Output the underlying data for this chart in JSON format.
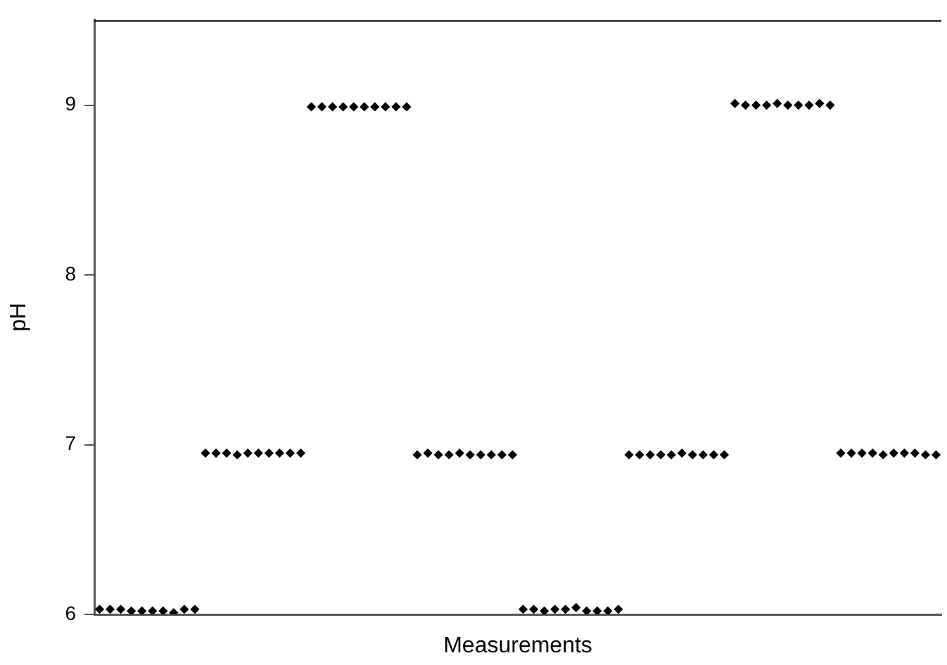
{
  "chart_data": {
    "type": "scatter",
    "xlabel": "Measurements",
    "ylabel": "pH",
    "categories": [
      null,
      null,
      null,
      null,
      null,
      null,
      null,
      null,
      null,
      null,
      null,
      null,
      null,
      null,
      null,
      null,
      null,
      null,
      null,
      null,
      null,
      null,
      null,
      null,
      null,
      null,
      null,
      null,
      null,
      null,
      null,
      null,
      null,
      null,
      null,
      null,
      null,
      null,
      null,
      null,
      null,
      null,
      null,
      null,
      null,
      null,
      null,
      null,
      null,
      null,
      null,
      null,
      null,
      null,
      null,
      null,
      null,
      null,
      null,
      null,
      null,
      null,
      null,
      null,
      null,
      null,
      null,
      null,
      null,
      null,
      null,
      null,
      null,
      null,
      null,
      null,
      null,
      null,
      null,
      null
    ],
    "series": [
      {
        "color": "#000000",
        "values": [
          6.03,
          6.03,
          6.03,
          6.02,
          6.02,
          6.02,
          6.02,
          6.01,
          6.03,
          6.03,
          6.95,
          6.95,
          6.95,
          6.94,
          6.95,
          6.95,
          6.95,
          6.95,
          6.95,
          6.95,
          8.99,
          8.99,
          8.99,
          8.99,
          8.99,
          8.99,
          8.99,
          8.99,
          8.99,
          8.99,
          6.94,
          6.95,
          6.94,
          6.94,
          6.95,
          6.94,
          6.94,
          6.94,
          6.94,
          6.94,
          6.03,
          6.03,
          6.02,
          6.03,
          6.03,
          6.04,
          6.02,
          6.02,
          6.02,
          6.03,
          6.94,
          6.94,
          6.94,
          6.94,
          6.94,
          6.95,
          6.94,
          6.94,
          6.94,
          6.94,
          9.01,
          9.0,
          9.0,
          9.0,
          9.01,
          9.0,
          9.0,
          9.0,
          9.01,
          9.0,
          6.95,
          6.95,
          6.95,
          6.95,
          6.94,
          6.95,
          6.95,
          6.95,
          6.94,
          6.94
        ]
      }
    ],
    "ylim": [
      6,
      9.5
    ],
    "yticks": [
      6,
      7,
      8,
      9
    ],
    "marker": "diamond",
    "tick_labels": "y"
  }
}
